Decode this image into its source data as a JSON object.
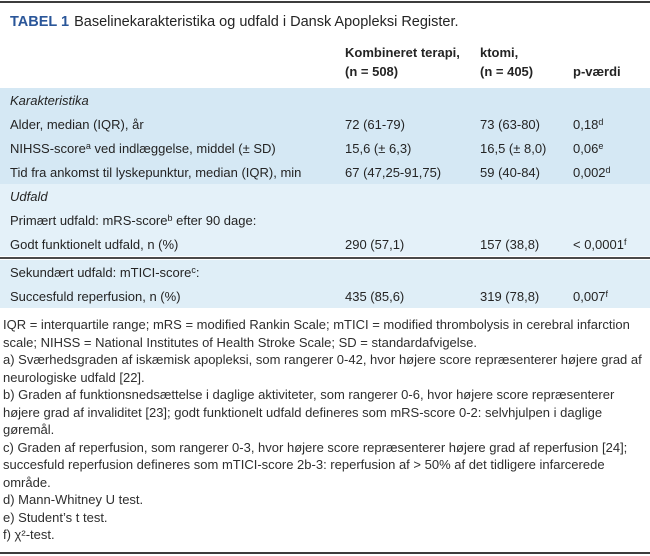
{
  "title": {
    "tag": "TABEL 1",
    "text": "Baselinekarakteristika og udfald i Dansk Apopleksi Register."
  },
  "header": {
    "combined_line1": "Kombineret terapi,",
    "combined_line2": "(n = 508)",
    "thrombectomy_line1": "ktomi,",
    "thrombectomy_line2": "(n = 405)",
    "p_label": "p-værdi"
  },
  "sections": [
    {
      "label": "Karakteristika",
      "rows": [
        {
          "label": "Alder, median (IQR), år",
          "combined": "72 (61-79)",
          "thrombectomy": "73 (63-80)",
          "p": "0,18",
          "p_sup": "d"
        },
        {
          "label": "NIHSS-score",
          "label_sup": "a",
          "label_rest": " ved indlæggelse, middel (± SD)",
          "combined": "15,6 (± 6,3)",
          "thrombectomy": "16,5 (± 8,0)",
          "p": "0,06",
          "p_sup": "e"
        },
        {
          "label": "Tid fra ankomst til lyskepunktur, median (IQR), min",
          "combined": "67 (47,25-91,75)",
          "thrombectomy": "59 (40-84)",
          "p": "0,002",
          "p_sup": "d"
        }
      ]
    },
    {
      "label": "Udfald",
      "rows": [
        {
          "label": "Primært udfald: mRS-score",
          "label_sup": "b",
          "label_rest": " efter 90 dage:",
          "combined": "",
          "thrombectomy": "",
          "p": ""
        },
        {
          "label": "Godt funktionelt udfald, n (%)",
          "combined": "290 (57,1)",
          "thrombectomy": "157 (38,8)",
          "p": "< 0,0001",
          "p_sup": "f"
        }
      ]
    },
    {
      "label": "",
      "rows": [
        {
          "label": "Sekundært udfald: mTICI-score",
          "label_sup": "c",
          "label_rest": ":",
          "combined": "",
          "thrombectomy": "",
          "p": ""
        },
        {
          "label": "Succesfuld reperfusion, n (%)",
          "combined": "435 (85,6)",
          "thrombectomy": "319 (78,8)",
          "p": "0,007",
          "p_sup": "f"
        }
      ]
    }
  ],
  "footnotes": [
    "IQR = interquartile range; mRS = modified Rankin Scale; mTICI = modified thrombolysis in cerebral infarction scale; NIHSS = National Institutes of Health Stroke Scale; SD = standardafvigelse.",
    "a) Sværhedsgraden af iskæmisk apopleksi, som rangerer 0-42, hvor højere score repræsenterer højere grad af neurologiske udfald [22].",
    "b) Graden af funktionsnedsættelse i daglige aktiviteter, som rangerer 0-6, hvor højere score repræsenterer højere grad af invaliditet [23]; godt funktionelt udfald defineres som mRS-score 0-2: selvhjulpen i daglige gøremål.",
    "c) Graden af reperfusion, som rangerer 0-3, hvor højere score repræsenterer højere grad af reperfusion [24]; succesfuld reperfusion defineres som mTICI-score 2b-3: reperfusion af > 50% af det tidligere infarcerede område.",
    "d) Mann-Whitney U test.",
    "e) Student’s t test.",
    "f) χ²-test."
  ],
  "colors": {
    "title_accent": "#2a5699",
    "band_dark": "#d5e8f4",
    "band_light": "#e4f1f9",
    "band_mid": "#dfeef7",
    "rule": "#3c3c3c",
    "divider": "#4a4a4a"
  }
}
